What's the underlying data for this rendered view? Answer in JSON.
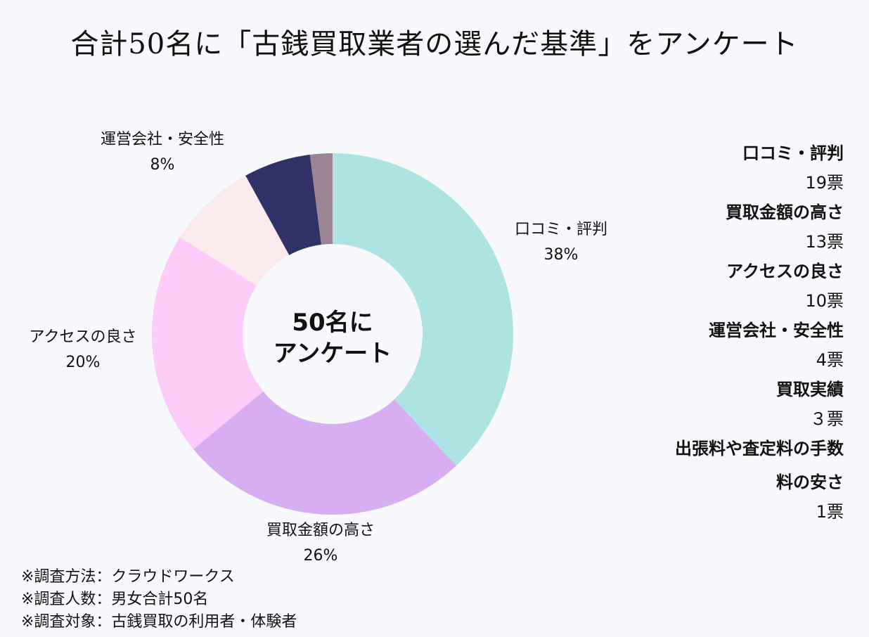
{
  "title": "合計50名に「古銭買取業者の選んだ基準」をアンケート",
  "colors": {
    "background": "#f7f9fc",
    "slices": [
      "#ade3e2",
      "#d8aef3",
      "#fdccf8",
      "#fbebed",
      "#2f3167",
      "#9b8495"
    ]
  },
  "chart_data": {
    "type": "pie",
    "donut": true,
    "center_label": [
      "50名に",
      "アンケート"
    ],
    "categories": [
      "口コミ・評判",
      "買取金額の高さ",
      "アクセスの良さ",
      "運営会社・安全性",
      "",
      ""
    ],
    "values": [
      38,
      26,
      20,
      8,
      6,
      2
    ],
    "value_labels": [
      "38%",
      "26%",
      "20%",
      "8%",
      "",
      ""
    ]
  },
  "legend": [
    {
      "label": "口コミ・評判",
      "votes": "19票"
    },
    {
      "label": "買取金額の高さ",
      "votes": "13票"
    },
    {
      "label": "アクセスの良さ",
      "votes": "10票"
    },
    {
      "label": "運営会社・安全性",
      "votes": "4票"
    },
    {
      "label": "買取実績",
      "votes": "３票"
    },
    {
      "label": "出張料や査定料の手数",
      "label2": "料の安さ",
      "votes": "1票"
    }
  ],
  "notes": [
    "※調査方法：クラウドワークス",
    "※調査人数：男女合計50名",
    "※調査対象：古銭買取の利用者・体験者"
  ]
}
